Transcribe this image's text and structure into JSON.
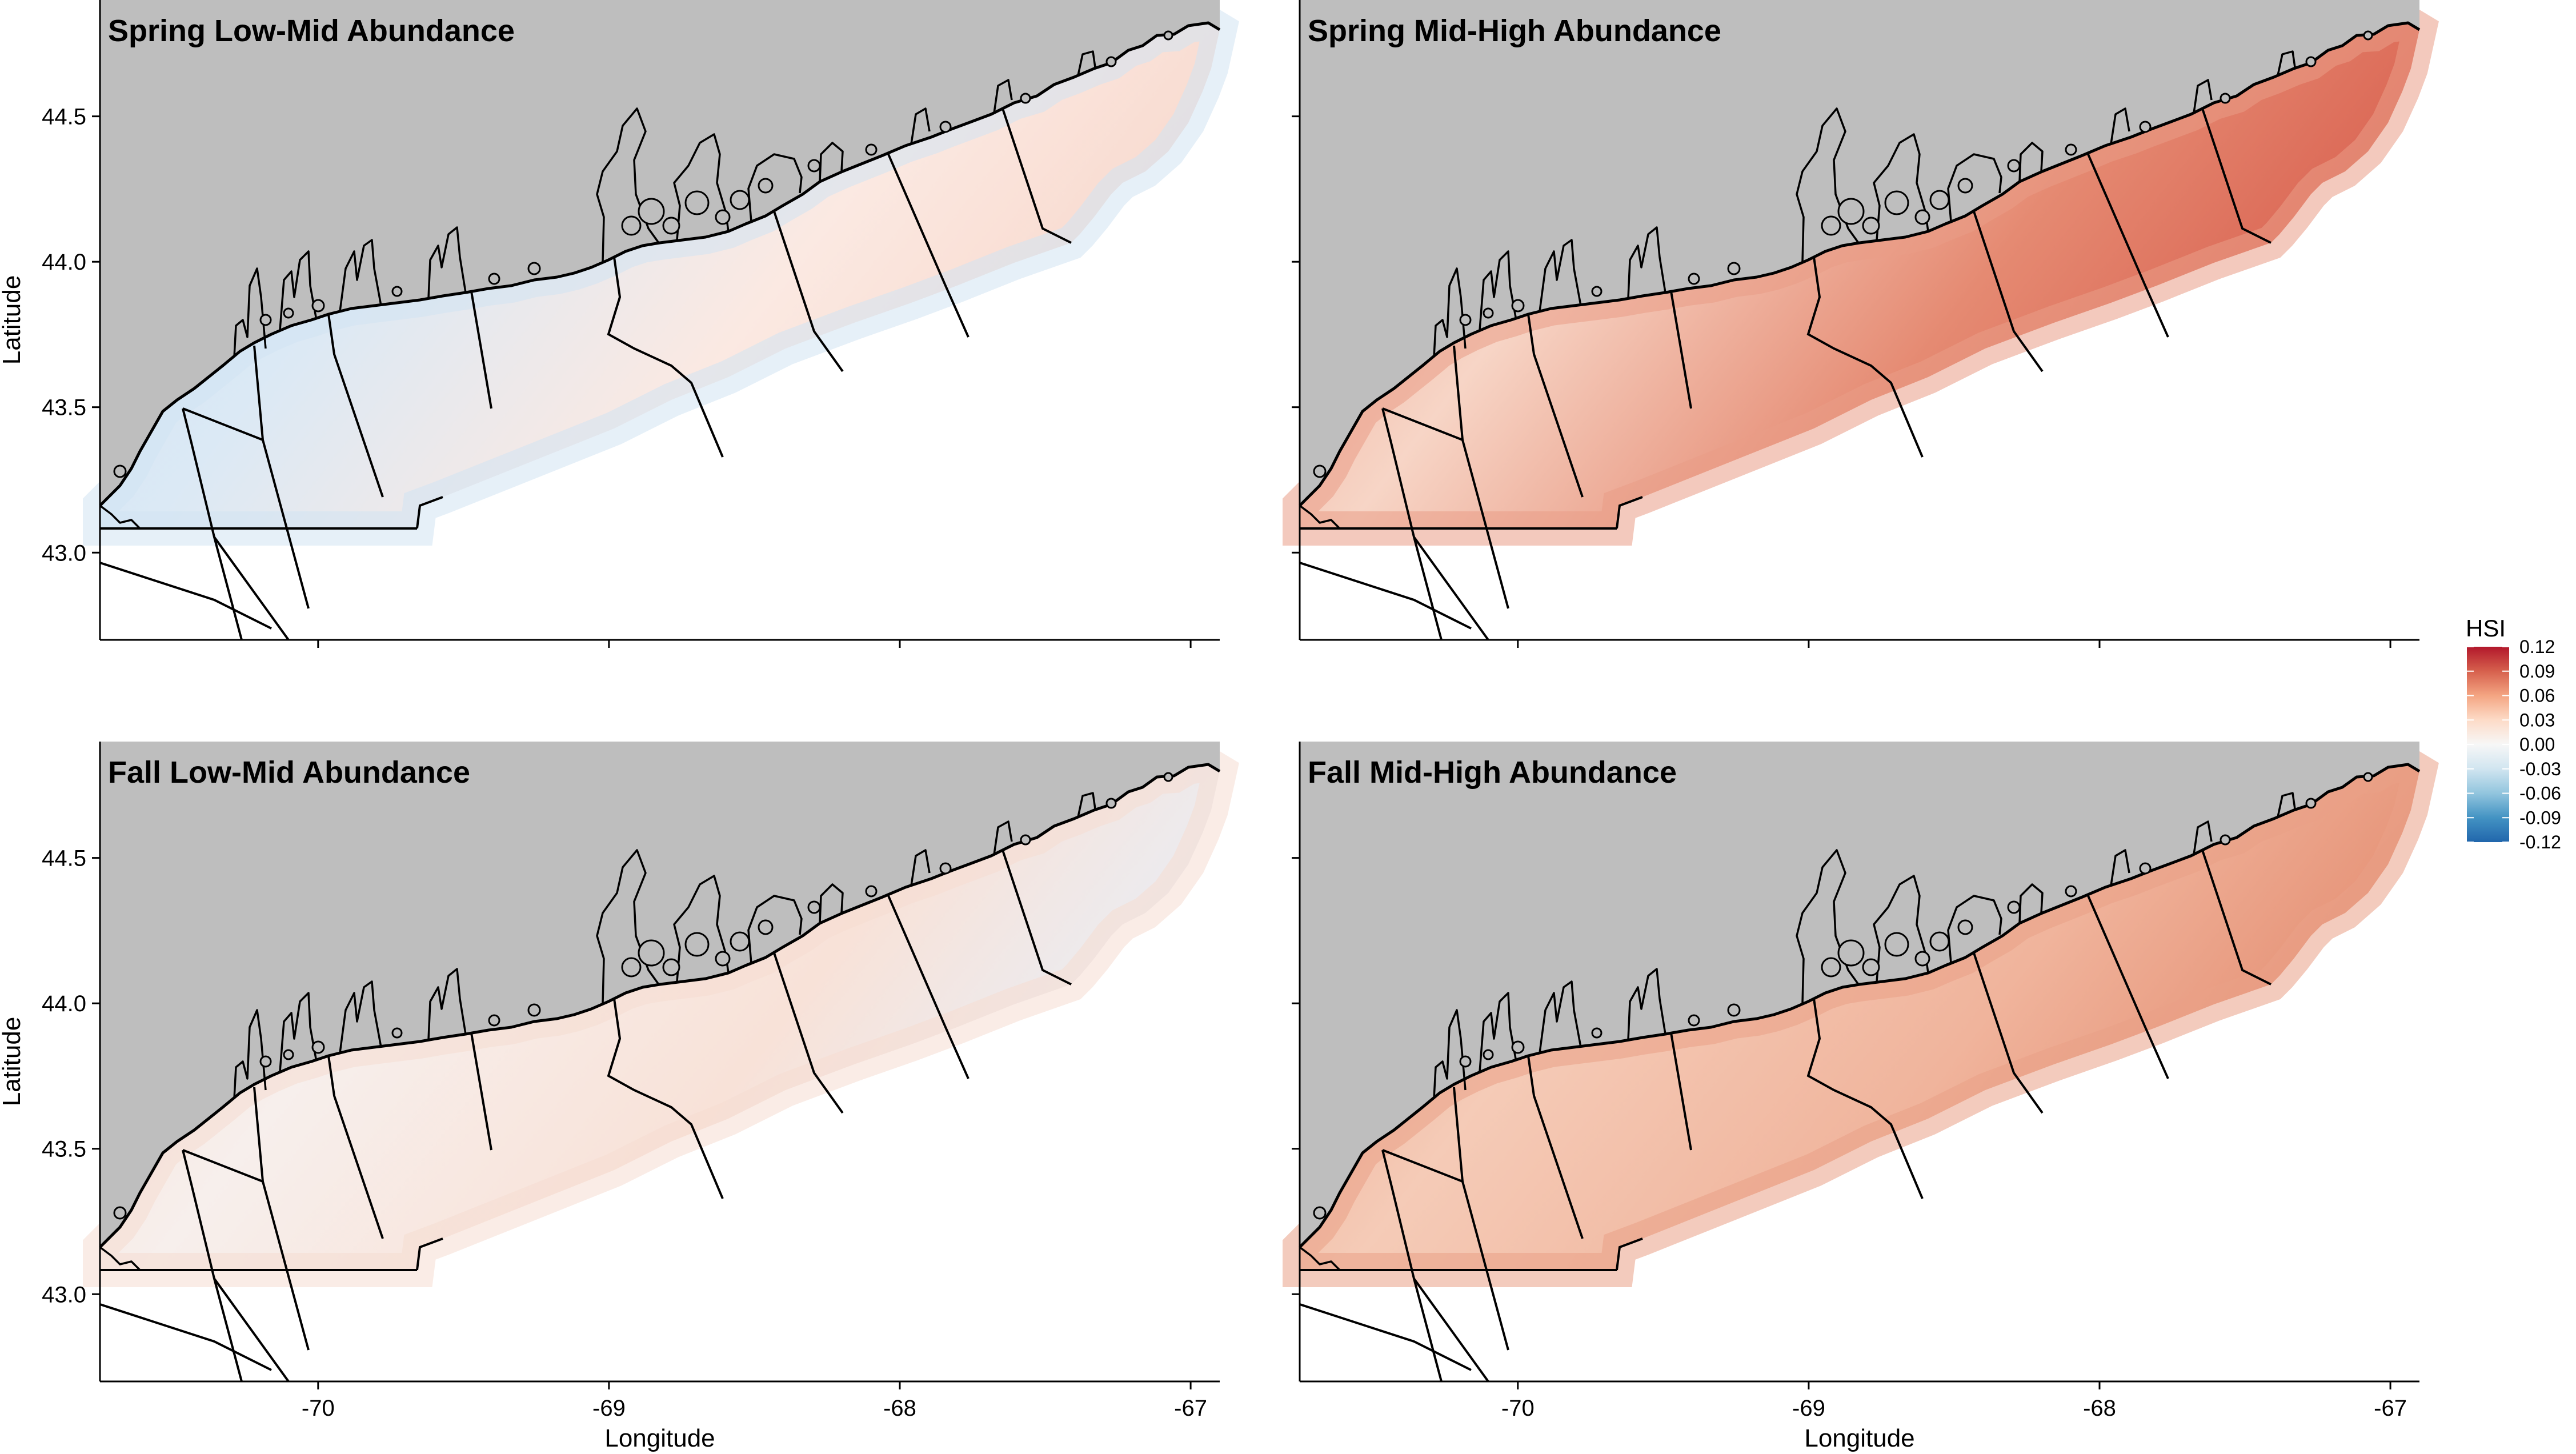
{
  "panels": [
    {
      "title": "Spring Low-Mid Abundance",
      "tint": "#dbe9f5",
      "tint_nearshore": "#d2e4f2",
      "tint_east": "#fbe9e2",
      "tint_edge": "#f8d8cc"
    },
    {
      "title": "Spring Mid-High Abundance",
      "tint": "#f7d5c6",
      "tint_nearshore": "#ea9d86",
      "tint_east": "#e58a72",
      "tint_edge": "#d9604f"
    },
    {
      "title": "Fall Low-Mid Abundance",
      "tint": "#f7efec",
      "tint_nearshore": "#f6ddd2",
      "tint_east": "#f8e2d8",
      "tint_edge": "#e8eef6"
    },
    {
      "title": "Fall Mid-High Abundance",
      "tint": "#f5cbb7",
      "tint_nearshore": "#eaa086",
      "tint_east": "#f0b49c",
      "tint_edge": "#e48d71"
    }
  ],
  "axes": {
    "x_title": "Longitude",
    "y_title": "Latitude",
    "x_ticks": [
      "-70",
      "-69",
      "-68",
      "-67"
    ],
    "y_ticks": [
      "43.0",
      "43.5",
      "44.0",
      "44.5"
    ],
    "x_values": [
      -70,
      -69,
      -68,
      -67
    ],
    "y_values": [
      43.0,
      43.5,
      44.0,
      44.5
    ],
    "xlim": [
      -70.75,
      -66.9
    ],
    "ylim": [
      42.7,
      44.9
    ]
  },
  "legend": {
    "title": "HSI",
    "labels": [
      "0.12",
      "0.09",
      "0.06",
      "0.03",
      "0.00",
      "-0.03",
      "-0.06",
      "-0.09",
      "-0.12"
    ],
    "values": [
      0.12,
      0.09,
      0.06,
      0.03,
      0.0,
      -0.03,
      -0.06,
      -0.09,
      -0.12
    ],
    "colors": [
      "#b2182b",
      "#d6604d",
      "#f4a582",
      "#fddbc7",
      "#f7f7f7",
      "#d1e5f0",
      "#92c5de",
      "#4393c3",
      "#2166ac"
    ]
  },
  "colors": {
    "land": "#bebebe",
    "background": "#ffffff",
    "outline": "#000000"
  }
}
